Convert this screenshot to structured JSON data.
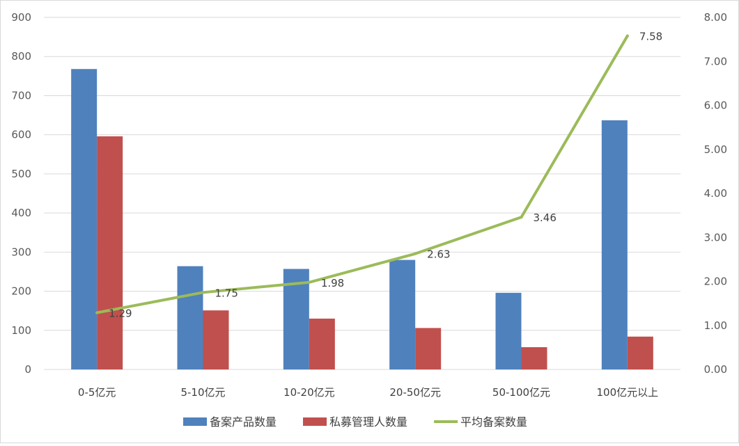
{
  "chart_data": {
    "type": "bar+line",
    "title": "",
    "categories": [
      "0-5亿元",
      "5-10亿元",
      "10-20亿元",
      "20-50亿元",
      "50-100亿元",
      "100亿元以上"
    ],
    "series": [
      {
        "name": "备案产品数量",
        "type": "bar",
        "axis": "left",
        "color": "#4f81bd",
        "values": [
          768,
          264,
          257,
          280,
          196,
          637
        ]
      },
      {
        "name": "私募管理人数量",
        "type": "bar",
        "axis": "left",
        "color": "#c0504d",
        "values": [
          596,
          151,
          130,
          106,
          57,
          84
        ]
      },
      {
        "name": "平均备案数量",
        "type": "line",
        "axis": "right",
        "color": "#9bbb59",
        "values": [
          1.29,
          1.75,
          1.98,
          2.63,
          3.46,
          7.58
        ],
        "labels": [
          "1.29",
          "1.75",
          "1.98",
          "2.63",
          "3.46",
          "7.58"
        ]
      }
    ],
    "y_left": {
      "min": 0,
      "max": 900,
      "step": 100,
      "ticks": [
        "0",
        "100",
        "200",
        "300",
        "400",
        "500",
        "600",
        "700",
        "800",
        "900"
      ]
    },
    "y_right": {
      "min": 0,
      "max": 8,
      "step": 1,
      "ticks": [
        "0.00",
        "1.00",
        "2.00",
        "3.00",
        "4.00",
        "5.00",
        "6.00",
        "7.00",
        "8.00"
      ]
    },
    "grid": true,
    "legend": "bottom"
  }
}
